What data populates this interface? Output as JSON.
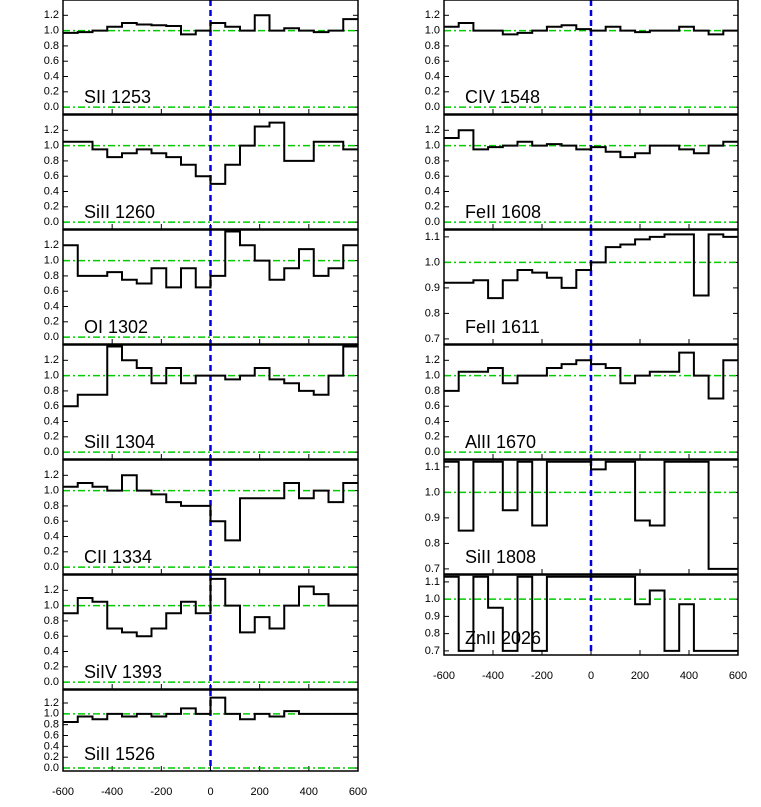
{
  "chart_data": [
    {
      "type": "line",
      "label": "SII 1253",
      "x": [
        -570,
        -510,
        -450,
        -390,
        -330,
        -270,
        -210,
        -150,
        -90,
        -30,
        30,
        90,
        150,
        210,
        270,
        330,
        390,
        450,
        510,
        570
      ],
      "values": [
        0.97,
        0.98,
        1.0,
        1.05,
        1.1,
        1.08,
        1.07,
        1.06,
        0.95,
        1.0,
        1.1,
        1.05,
        1.0,
        1.2,
        1.0,
        1.03,
        1.0,
        0.98,
        1.0,
        1.15
      ],
      "xlim": [
        -600,
        600
      ],
      "xticks": [
        -600,
        -400,
        -200,
        0,
        200,
        400,
        600
      ],
      "ylim": [
        -0.09,
        1.4
      ],
      "yticks": [
        {
          "value": 0.0,
          "label": "0.0"
        },
        0.2,
        0.4,
        0.6,
        0.8,
        {
          "value": 1.0,
          "label": "1.0"
        },
        1.2
      ],
      "reference_lines": [
        0,
        1
      ],
      "vline": 0
    },
    {
      "type": "line",
      "label": "SiII 1260",
      "x": [
        -570,
        -510,
        -450,
        -390,
        -330,
        -270,
        -210,
        -150,
        -90,
        -30,
        30,
        90,
        150,
        210,
        270,
        330,
        390,
        450,
        510,
        570
      ],
      "values": [
        1.05,
        1.05,
        0.95,
        0.85,
        0.9,
        0.95,
        0.9,
        0.85,
        0.75,
        0.6,
        0.5,
        0.75,
        1.0,
        1.25,
        1.3,
        0.8,
        0.8,
        1.05,
        1.05,
        0.95
      ],
      "xlim": [
        -600,
        600
      ],
      "xticks": [
        -600,
        -400,
        -200,
        0,
        200,
        400,
        600
      ],
      "ylim": [
        -0.09,
        1.4
      ],
      "yticks": [
        {
          "value": 0.0,
          "label": "0.0"
        },
        0.2,
        0.4,
        0.6,
        0.8,
        {
          "value": 1.0,
          "label": "1.0"
        },
        1.2
      ],
      "reference_lines": [
        0,
        1
      ],
      "vline": 0
    },
    {
      "type": "line",
      "label": "OI 1302",
      "x": [
        -570,
        -510,
        -450,
        -390,
        -330,
        -270,
        -210,
        -150,
        -90,
        -30,
        30,
        90,
        150,
        210,
        270,
        330,
        390,
        450,
        510,
        570
      ],
      "values": [
        1.2,
        0.8,
        0.8,
        0.85,
        0.75,
        0.7,
        0.9,
        0.65,
        0.9,
        0.65,
        0.8,
        1.38,
        1.2,
        1.0,
        0.75,
        0.9,
        1.15,
        0.8,
        0.9,
        1.2
      ],
      "xlim": [
        -600,
        600
      ],
      "xticks": [
        -600,
        -400,
        -200,
        0,
        200,
        400,
        600
      ],
      "ylim": [
        -0.09,
        1.4
      ],
      "yticks": [
        {
          "value": 0.0,
          "label": "0.0"
        },
        0.2,
        0.4,
        0.6,
        0.8,
        {
          "value": 1.0,
          "label": "1.0"
        },
        1.2
      ],
      "reference_lines": [
        0,
        1
      ],
      "vline": 0
    },
    {
      "type": "line",
      "label": "SiII 1304",
      "x": [
        -570,
        -510,
        -450,
        -390,
        -330,
        -270,
        -210,
        -150,
        -90,
        -30,
        30,
        90,
        150,
        210,
        270,
        330,
        390,
        450,
        510,
        570
      ],
      "values": [
        0.6,
        0.75,
        0.75,
        1.38,
        1.2,
        1.1,
        0.9,
        1.1,
        0.9,
        1.0,
        1.0,
        0.95,
        1.0,
        1.1,
        0.95,
        0.9,
        0.8,
        0.75,
        1.0,
        1.38
      ],
      "xlim": [
        -600,
        600
      ],
      "xticks": [
        -600,
        -400,
        -200,
        0,
        200,
        400,
        600
      ],
      "ylim": [
        -0.09,
        1.4
      ],
      "yticks": [
        {
          "value": 0.0,
          "label": "0.0"
        },
        0.2,
        0.4,
        0.6,
        0.8,
        {
          "value": 1.0,
          "label": "1.0"
        },
        1.2
      ],
      "reference_lines": [
        0,
        1
      ],
      "vline": 0
    },
    {
      "type": "line",
      "label": "CII 1334",
      "x": [
        -570,
        -510,
        -450,
        -390,
        -330,
        -270,
        -210,
        -150,
        -90,
        -30,
        30,
        90,
        150,
        210,
        270,
        330,
        390,
        450,
        510,
        570
      ],
      "values": [
        1.05,
        1.1,
        1.05,
        1.0,
        1.2,
        1.0,
        0.95,
        0.85,
        0.8,
        0.8,
        0.6,
        0.35,
        0.9,
        0.9,
        0.9,
        1.1,
        0.9,
        1.0,
        0.85,
        1.1
      ],
      "xlim": [
        -600,
        600
      ],
      "xticks": [
        -600,
        -400,
        -200,
        0,
        200,
        400,
        600
      ],
      "ylim": [
        -0.09,
        1.4
      ],
      "yticks": [
        {
          "value": 0.0,
          "label": "0.0"
        },
        0.2,
        0.4,
        0.6,
        0.8,
        {
          "value": 1.0,
          "label": "1.0"
        },
        1.2
      ],
      "reference_lines": [
        0,
        1
      ],
      "vline": 0
    },
    {
      "type": "line",
      "label": "SiIV 1393",
      "x": [
        -570,
        -510,
        -450,
        -390,
        -330,
        -270,
        -210,
        -150,
        -90,
        -30,
        30,
        90,
        150,
        210,
        270,
        330,
        390,
        450,
        510,
        570
      ],
      "values": [
        0.9,
        1.1,
        1.05,
        0.7,
        0.65,
        0.6,
        0.7,
        0.9,
        1.05,
        0.9,
        1.35,
        1.0,
        0.65,
        0.85,
        0.7,
        1.0,
        1.25,
        1.15,
        1.0,
        1.0
      ],
      "xlim": [
        -600,
        600
      ],
      "xticks": [
        -600,
        -400,
        -200,
        0,
        200,
        400,
        600
      ],
      "ylim": [
        -0.09,
        1.4
      ],
      "yticks": [
        {
          "value": 0.0,
          "label": "0.0"
        },
        0.2,
        0.4,
        0.6,
        0.8,
        {
          "value": 1.0,
          "label": "1.0"
        },
        1.2
      ],
      "reference_lines": [
        0,
        1
      ],
      "vline": 0
    },
    {
      "type": "line",
      "label": "SiII 1526",
      "x": [
        -570,
        -510,
        -450,
        -390,
        -330,
        -270,
        -210,
        -150,
        -90,
        -30,
        30,
        90,
        150,
        210,
        270,
        330,
        390,
        450,
        510,
        570
      ],
      "values": [
        0.85,
        0.95,
        0.9,
        1.0,
        0.95,
        1.0,
        0.95,
        1.0,
        1.1,
        1.0,
        1.3,
        1.0,
        0.9,
        1.0,
        0.95,
        1.05,
        1.0,
        1.0,
        1.0,
        1.0
      ],
      "xlim": [
        -600,
        600
      ],
      "xticks": [
        -600,
        -400,
        -200,
        0,
        200,
        400,
        600
      ],
      "ylim": [
        -0.055,
        1.44
      ],
      "yticks": [
        {
          "value": 0.0,
          "label": "0.0"
        },
        0.2,
        0.4,
        0.6,
        0.8,
        {
          "value": 1.0,
          "label": "1.0"
        },
        1.2
      ],
      "reference_lines": [
        0,
        1
      ],
      "vline": 0
    },
    {
      "type": "line",
      "label": "CIV 1548",
      "x": [
        -570,
        -510,
        -450,
        -390,
        -330,
        -270,
        -210,
        -150,
        -90,
        -30,
        30,
        90,
        150,
        210,
        270,
        330,
        390,
        450,
        510,
        570
      ],
      "values": [
        1.05,
        1.1,
        1.0,
        1.0,
        0.95,
        0.97,
        1.0,
        1.05,
        1.07,
        1.02,
        1.0,
        1.05,
        1.0,
        0.98,
        1.0,
        1.0,
        1.05,
        1.0,
        0.95,
        1.0
      ],
      "xlim": [
        -600,
        600
      ],
      "xticks": [
        -600,
        -400,
        -200,
        0,
        200,
        400,
        600
      ],
      "ylim": [
        -0.09,
        1.4
      ],
      "yticks": [
        {
          "value": 0.0,
          "label": "0.0"
        },
        0.2,
        0.4,
        0.6,
        0.8,
        {
          "value": 1.0,
          "label": "1.0"
        },
        1.2
      ],
      "reference_lines": [
        0,
        1
      ],
      "vline": 0
    },
    {
      "type": "line",
      "label": "FeII 1608",
      "x": [
        -570,
        -510,
        -450,
        -390,
        -330,
        -270,
        -210,
        -150,
        -90,
        -30,
        30,
        90,
        150,
        210,
        270,
        330,
        390,
        450,
        510,
        570
      ],
      "values": [
        1.1,
        1.2,
        0.95,
        0.98,
        1.0,
        1.05,
        1.0,
        1.02,
        1.0,
        0.95,
        0.98,
        0.92,
        0.85,
        0.9,
        1.0,
        1.0,
        0.95,
        0.9,
        1.0,
        1.05
      ],
      "xlim": [
        -600,
        600
      ],
      "xticks": [
        -600,
        -400,
        -200,
        0,
        200,
        400,
        600
      ],
      "ylim": [
        -0.09,
        1.4
      ],
      "yticks": [
        {
          "value": 0.0,
          "label": "0.0"
        },
        0.2,
        0.4,
        0.6,
        0.8,
        {
          "value": 1.0,
          "label": "1.0"
        },
        1.2
      ],
      "reference_lines": [
        0,
        1
      ],
      "vline": 0
    },
    {
      "type": "line",
      "label": "FeII 1611",
      "x": [
        -570,
        -510,
        -450,
        -390,
        -330,
        -270,
        -210,
        -150,
        -90,
        -30,
        30,
        90,
        150,
        210,
        270,
        330,
        390,
        450,
        510,
        570
      ],
      "values": [
        0.92,
        0.92,
        0.93,
        0.86,
        0.93,
        0.97,
        0.96,
        0.94,
        0.9,
        0.97,
        1.0,
        1.06,
        1.07,
        1.09,
        1.1,
        1.11,
        1.11,
        0.87,
        1.11,
        1.1
      ],
      "xlim": [
        -600,
        600
      ],
      "xticks": [
        -600,
        -400,
        -200,
        0,
        200,
        400,
        600
      ],
      "ylim": [
        0.68,
        1.127
      ],
      "yticks": [
        0.7,
        0.8,
        0.9,
        {
          "value": 1.0,
          "label": "1.0"
        },
        1.1
      ],
      "reference_lines": [
        1
      ],
      "vline": 0
    },
    {
      "type": "line",
      "label": "AlII 1670",
      "x": [
        -570,
        -510,
        -450,
        -390,
        -330,
        -270,
        -210,
        -150,
        -90,
        -30,
        30,
        90,
        150,
        210,
        270,
        330,
        390,
        450,
        510,
        570
      ],
      "values": [
        0.8,
        1.05,
        1.05,
        1.1,
        0.9,
        1.0,
        1.0,
        1.1,
        1.15,
        1.2,
        1.15,
        1.1,
        0.9,
        1.0,
        1.05,
        1.05,
        1.3,
        1.0,
        0.7,
        1.2
      ],
      "xlim": [
        -600,
        600
      ],
      "xticks": [
        -600,
        -400,
        -200,
        0,
        200,
        400,
        600
      ],
      "ylim": [
        -0.09,
        1.4
      ],
      "yticks": [
        {
          "value": 0.0,
          "label": "0.0"
        },
        0.2,
        0.4,
        0.6,
        0.8,
        {
          "value": 1.0,
          "label": "1.0"
        },
        1.2
      ],
      "reference_lines": [
        0,
        1
      ],
      "vline": 0
    },
    {
      "type": "line",
      "label": "SiII 1808",
      "x": [
        -570,
        -510,
        -450,
        -390,
        -330,
        -270,
        -210,
        -150,
        -90,
        -30,
        30,
        90,
        150,
        210,
        270,
        330,
        390,
        450,
        510,
        570
      ],
      "values": [
        1.12,
        0.85,
        1.12,
        1.12,
        0.93,
        1.12,
        0.87,
        1.12,
        1.12,
        1.12,
        1.09,
        1.12,
        1.12,
        0.89,
        0.87,
        1.12,
        1.12,
        1.12,
        0.7,
        0.7
      ],
      "xlim": [
        -600,
        600
      ],
      "xticks": [
        -600,
        -400,
        -200,
        0,
        200,
        400,
        600
      ],
      "ylim": [
        0.68,
        1.127
      ],
      "yticks": [
        0.7,
        0.8,
        0.9,
        {
          "value": 1.0,
          "label": "1.0"
        },
        1.1
      ],
      "reference_lines": [
        1
      ],
      "vline": 0
    },
    {
      "type": "line",
      "label": "ZnII 2026",
      "x": [
        -570,
        -510,
        -450,
        -390,
        -330,
        -270,
        -210,
        -150,
        -90,
        -30,
        30,
        90,
        150,
        210,
        270,
        330,
        390,
        450,
        510,
        570
      ],
      "values": [
        1.13,
        0.7,
        1.13,
        0.95,
        0.7,
        1.13,
        0.7,
        1.13,
        1.13,
        1.13,
        1.13,
        1.13,
        1.13,
        0.97,
        1.05,
        0.7,
        0.97,
        0.7,
        0.7,
        0.7
      ],
      "xlim": [
        -600,
        600
      ],
      "xticks": [
        -600,
        -400,
        -200,
        0,
        200,
        400,
        600
      ],
      "ylim": [
        0.676,
        1.14
      ],
      "yticks": [
        0.7,
        0.8,
        0.9,
        {
          "value": 1.0,
          "label": "1.0"
        },
        1.1
      ],
      "reference_lines": [
        1
      ],
      "vline": 0
    }
  ]
}
